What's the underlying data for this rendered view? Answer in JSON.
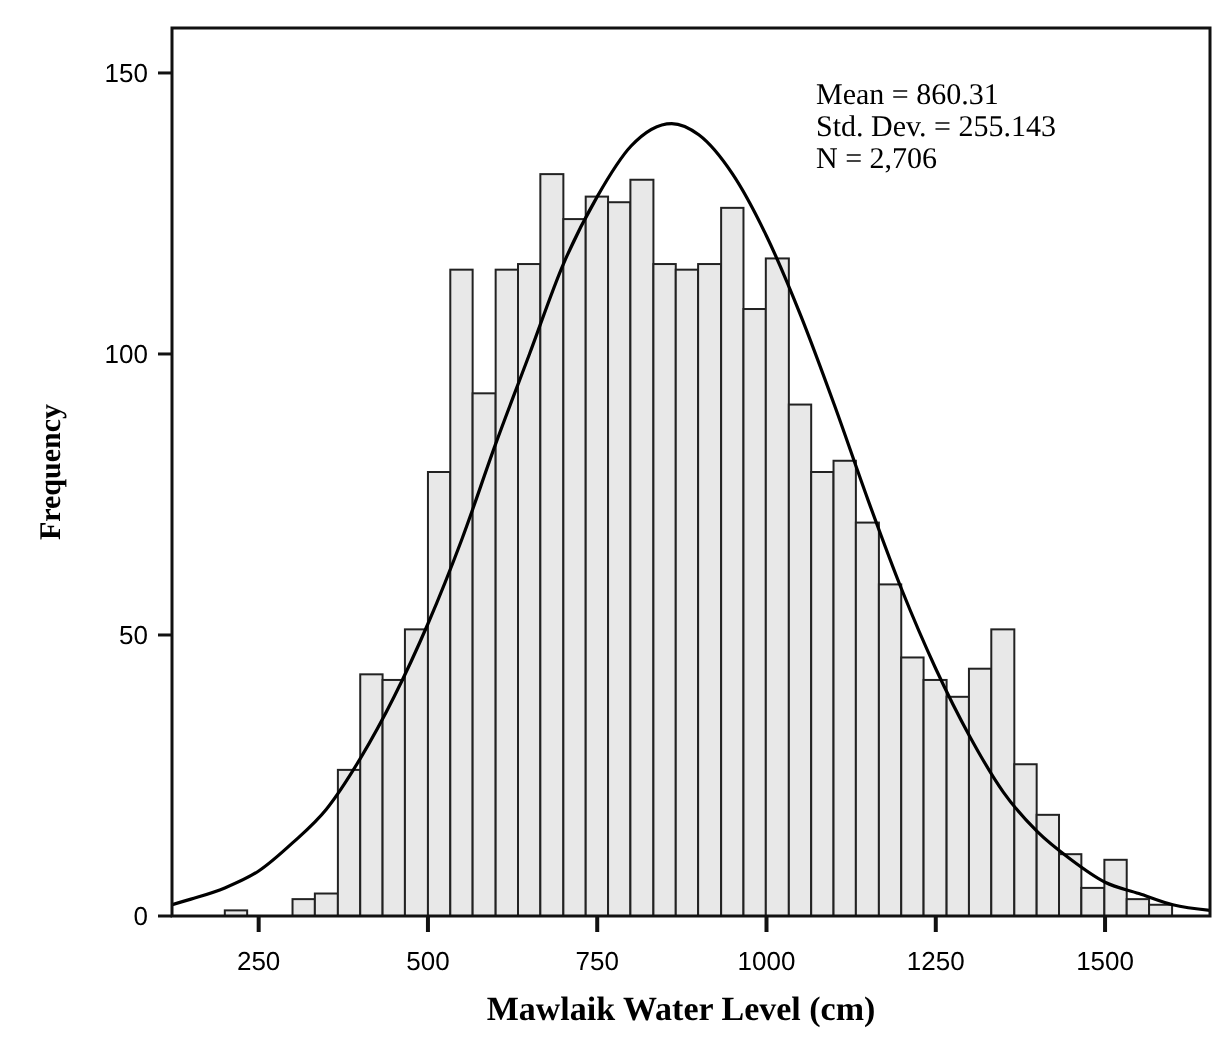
{
  "chart_data": {
    "type": "histogram",
    "xlabel": "Mawlaik Water Level (cm)",
    "ylabel": "Frequency",
    "annotations": [
      "Mean = 860.31",
      "Std. Dev. = 255.143",
      "N = 2,706"
    ],
    "bins": [
      200,
      233,
      300,
      333,
      367,
      400,
      433,
      466,
      500,
      533,
      566,
      600,
      633,
      666,
      700,
      733,
      766,
      799,
      833,
      866,
      899,
      933,
      966,
      999,
      1033,
      1066,
      1099,
      1132,
      1166,
      1199,
      1232,
      1266,
      1299,
      1332,
      1366,
      1399,
      1432,
      1465,
      1499,
      1532,
      1565,
      1599
    ],
    "series": [
      {
        "color": "#e8e8e8",
        "values": [
          1,
          0,
          3,
          4,
          26,
          43,
          42,
          51,
          79,
          115,
          93,
          115,
          116,
          132,
          124,
          128,
          127,
          131,
          116,
          115,
          116,
          126,
          108,
          117,
          91,
          79,
          81,
          70,
          59,
          46,
          42,
          39,
          44,
          51,
          27,
          18,
          11,
          5,
          10,
          3,
          2
        ]
      },
      {
        "type": "line",
        "color": "#000000",
        "x": [
          122,
          150,
          200,
          250,
          300,
          350,
          400,
          450,
          500,
          550,
          600,
          650,
          700,
          750,
          800,
          860,
          900,
          950,
          1000,
          1050,
          1100,
          1150,
          1200,
          1250,
          1300,
          1350,
          1400,
          1450,
          1500,
          1550,
          1600,
          1655
        ],
        "values": [
          2,
          3,
          5,
          8,
          13,
          19,
          28,
          39,
          52,
          67,
          84,
          100,
          116,
          128,
          137,
          141,
          139,
          132,
          121,
          107,
          91,
          74,
          58,
          44,
          32,
          22,
          15,
          10,
          6,
          4,
          2,
          1
        ]
      }
    ],
    "xlim": [
      122,
      1655
    ],
    "ylim": [
      0,
      158
    ],
    "xticks": [
      250,
      500,
      750,
      1000,
      1250,
      1500
    ],
    "yticks": [
      0,
      50,
      100,
      150
    ],
    "grid": false,
    "legend": false,
    "marker": "none",
    "line_style": "solid"
  }
}
